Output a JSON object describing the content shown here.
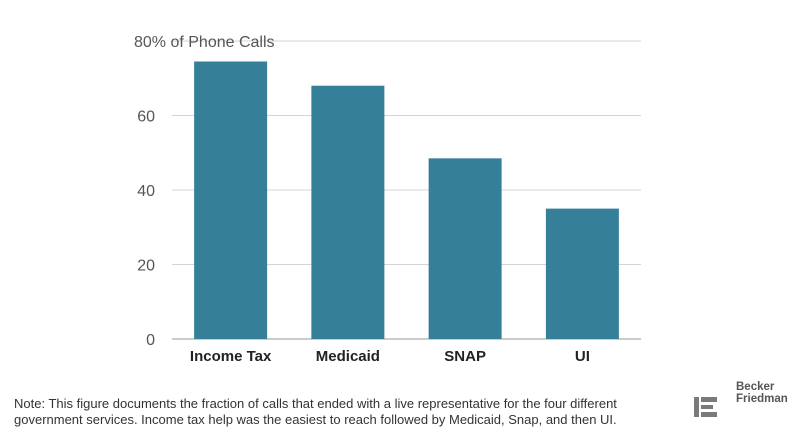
{
  "chart_data": {
    "type": "bar",
    "categories": [
      "Income Tax",
      "Medicaid",
      "SNAP",
      "UI"
    ],
    "values": [
      74.5,
      68,
      48.5,
      35
    ],
    "ylim": [
      0,
      80
    ],
    "yticks": [
      0,
      20,
      40,
      60,
      80
    ],
    "ytick_labels": [
      "0",
      "20",
      "40",
      "60",
      "80% of Phone Calls"
    ],
    "grid": true,
    "bar_color": "#367f99"
  },
  "footer": {
    "note": "Note: This figure documents the fraction of calls that ended with a live representative for the four different government services. Income tax help was the easiest to reach followed by Medicaid, Snap, and then UI."
  },
  "logo": {
    "line1": "Becker",
    "line2": "Friedman"
  }
}
